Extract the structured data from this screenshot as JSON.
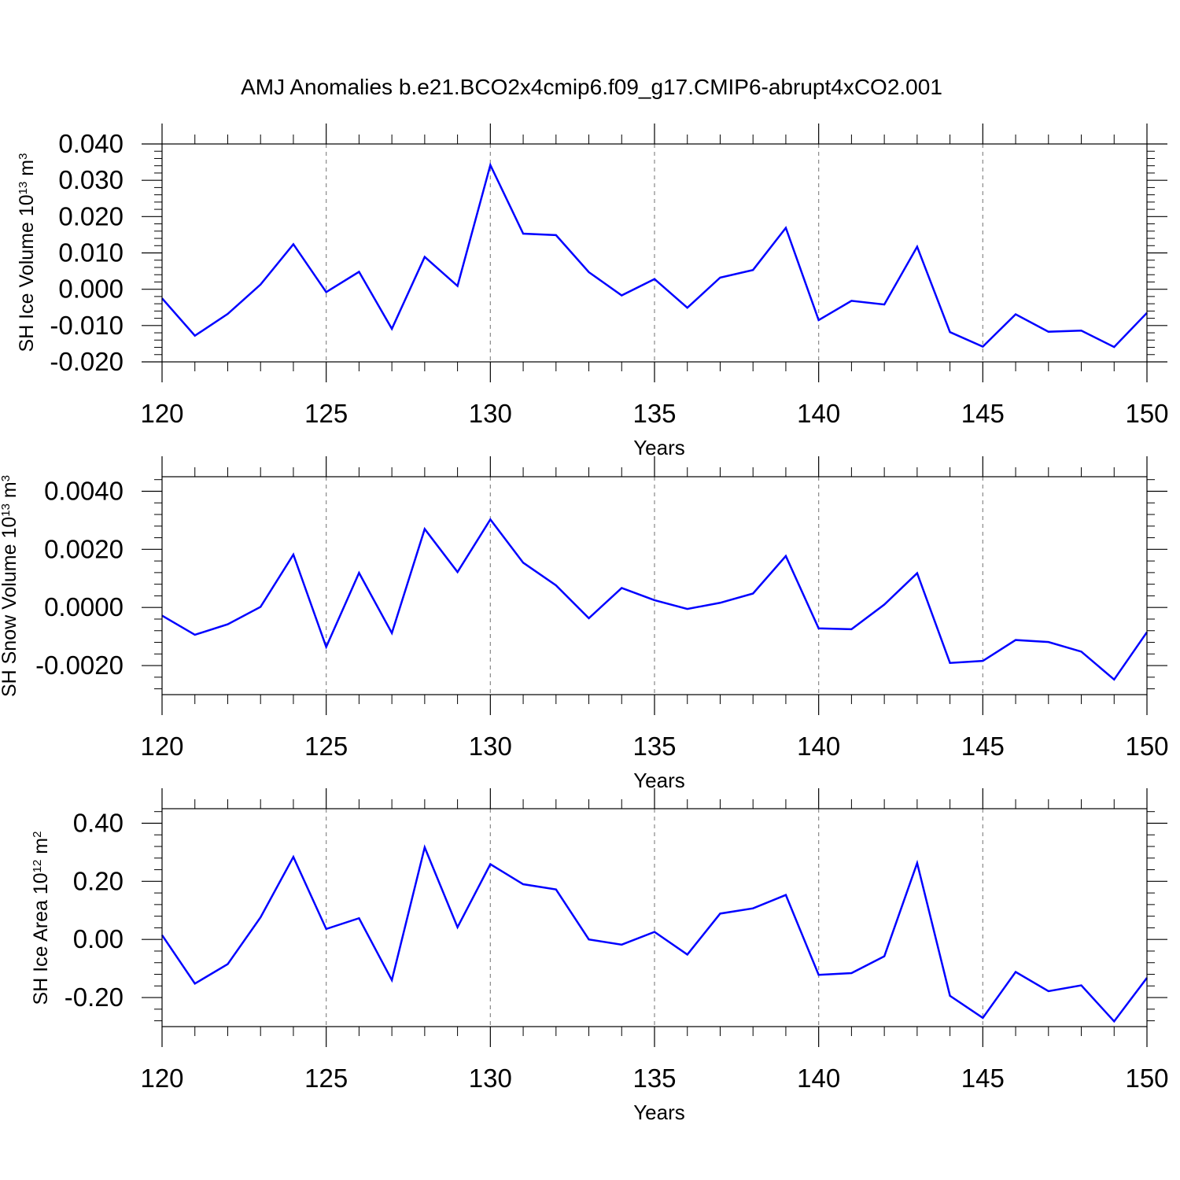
{
  "title": "AMJ Anomalies b.e21.BCO2x4cmip6.f09_g17.CMIP6-abrupt4xCO2.001",
  "line_color": "#0000ff",
  "grid_color": "#888888",
  "chart_data": [
    {
      "type": "line",
      "xlabel": "Years",
      "ylabel": {
        "main": "SH Ice Volume 10",
        "exp": "13",
        "unit": " m",
        "unit_exp": "3"
      },
      "xlim": [
        120,
        150
      ],
      "ylim": [
        -0.02,
        0.04
      ],
      "xticks": [
        120,
        125,
        130,
        135,
        140,
        145,
        150
      ],
      "xtick_labels": [
        "120",
        "125",
        "130",
        "135",
        "140",
        "145",
        "150"
      ],
      "yticks": [
        -0.02,
        -0.01,
        0.0,
        0.01,
        0.02,
        0.03,
        0.04
      ],
      "ytick_labels": [
        "-0.020",
        "-0.010",
        "0.000",
        "0.010",
        "0.020",
        "0.030",
        "0.040"
      ],
      "grid_x": [
        125,
        130,
        135,
        140,
        145
      ],
      "x": [
        120,
        121,
        122,
        123,
        124,
        125,
        126,
        127,
        128,
        129,
        130,
        131,
        132,
        133,
        134,
        135,
        136,
        137,
        138,
        139,
        140,
        141,
        142,
        143,
        144,
        145,
        146,
        147,
        148,
        149,
        150
      ],
      "values": [
        -0.0025,
        -0.0128,
        -0.0068,
        0.0013,
        0.0124,
        -0.0008,
        0.0048,
        -0.0109,
        0.0089,
        0.0009,
        0.0342,
        0.0153,
        0.0149,
        0.0047,
        -0.0017,
        0.0028,
        -0.0051,
        0.0032,
        0.0053,
        0.0169,
        -0.0085,
        -0.0032,
        -0.0042,
        0.0117,
        -0.0118,
        -0.0158,
        -0.0069,
        -0.0117,
        -0.0114,
        -0.0159,
        -0.0065
      ]
    },
    {
      "type": "line",
      "xlabel": "Years",
      "ylabel": {
        "main": "SH Snow Volume 10",
        "exp": "13",
        "unit": " m",
        "unit_exp": "3"
      },
      "xlim": [
        120,
        150
      ],
      "ylim": [
        -0.003,
        0.0045
      ],
      "xticks": [
        120,
        125,
        130,
        135,
        140,
        145,
        150
      ],
      "xtick_labels": [
        "120",
        "125",
        "130",
        "135",
        "140",
        "145",
        "150"
      ],
      "yticks": [
        -0.002,
        0.0,
        0.002,
        0.004
      ],
      "ytick_labels": [
        "-0.0020",
        "0.0000",
        "0.0020",
        "0.0040"
      ],
      "grid_x": [
        125,
        130,
        135,
        140,
        145
      ],
      "x": [
        120,
        121,
        122,
        123,
        124,
        125,
        126,
        127,
        128,
        129,
        130,
        131,
        132,
        133,
        134,
        135,
        136,
        137,
        138,
        139,
        140,
        141,
        142,
        143,
        144,
        145,
        146,
        147,
        148,
        149,
        150
      ],
      "values": [
        -0.00028,
        -0.00094,
        -0.00058,
        2e-05,
        0.00182,
        -0.00136,
        0.00119,
        -0.00088,
        0.0027,
        0.00122,
        0.00303,
        0.00154,
        0.00076,
        -0.00037,
        0.00067,
        0.00025,
        -5e-05,
        0.00016,
        0.00048,
        0.00177,
        -0.00072,
        -0.00075,
        0.0001,
        0.00118,
        -0.00191,
        -0.00184,
        -0.00112,
        -0.00119,
        -0.00152,
        -0.00248,
        -0.00085
      ]
    },
    {
      "type": "line",
      "xlabel": "Years",
      "ylabel": {
        "main": "SH Ice Area 10",
        "exp": "12",
        "unit": " m",
        "unit_exp": "2"
      },
      "xlim": [
        120,
        150
      ],
      "ylim": [
        -0.3,
        0.45
      ],
      "xticks": [
        120,
        125,
        130,
        135,
        140,
        145,
        150
      ],
      "xtick_labels": [
        "120",
        "125",
        "130",
        "135",
        "140",
        "145",
        "150"
      ],
      "yticks": [
        -0.2,
        0.0,
        0.2,
        0.4
      ],
      "ytick_labels": [
        "-0.20",
        "0.00",
        "0.20",
        "0.40"
      ],
      "grid_x": [
        125,
        130,
        135,
        140,
        145
      ],
      "x": [
        120,
        121,
        122,
        123,
        124,
        125,
        126,
        127,
        128,
        129,
        130,
        131,
        132,
        133,
        134,
        135,
        136,
        137,
        138,
        139,
        140,
        141,
        142,
        143,
        144,
        145,
        146,
        147,
        148,
        149,
        150
      ],
      "values": [
        0.015,
        -0.152,
        -0.085,
        0.076,
        0.284,
        0.036,
        0.073,
        -0.14,
        0.317,
        0.042,
        0.259,
        0.19,
        0.172,
        0.0,
        -0.018,
        0.026,
        -0.052,
        0.089,
        0.107,
        0.153,
        -0.122,
        -0.116,
        -0.058,
        0.263,
        -0.194,
        -0.27,
        -0.112,
        -0.178,
        -0.158,
        -0.282,
        -0.132
      ]
    }
  ]
}
